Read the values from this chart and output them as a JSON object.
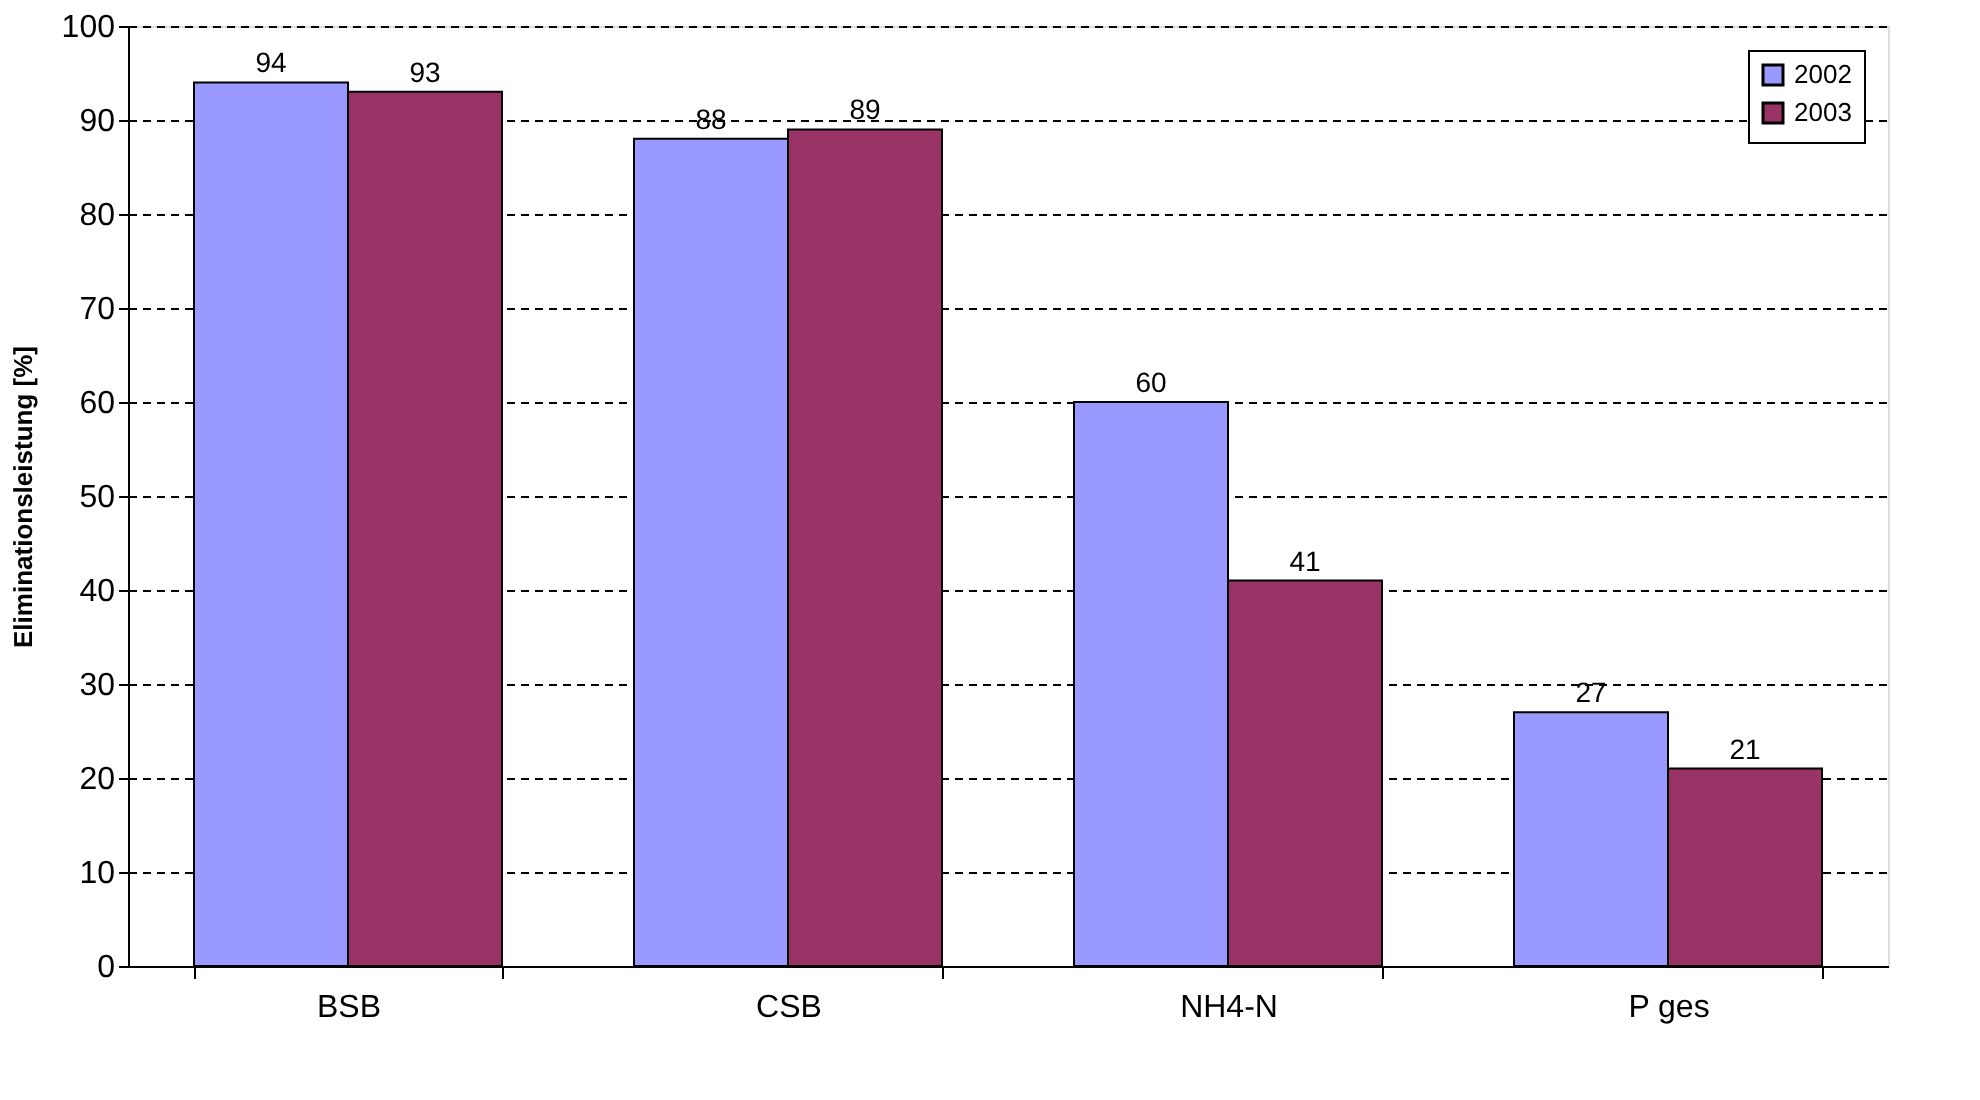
{
  "chart_data": {
    "type": "bar",
    "ylabel": "Eliminationsleistung [%]",
    "categories": [
      "BSB",
      "CSB",
      "NH4-N",
      "P ges"
    ],
    "series": [
      {
        "name": "2002",
        "color": "#9999ff",
        "values": [
          94,
          88,
          60,
          27
        ]
      },
      {
        "name": "2003",
        "color": "#993366",
        "values": [
          93,
          89,
          41,
          21
        ]
      }
    ],
    "ylim": [
      0,
      100
    ],
    "yticks": [
      0,
      10,
      20,
      30,
      40,
      50,
      60,
      70,
      80,
      90,
      100
    ],
    "grid": "y",
    "line_style": "dashed",
    "legend": "top right",
    "data_labels": true
  }
}
